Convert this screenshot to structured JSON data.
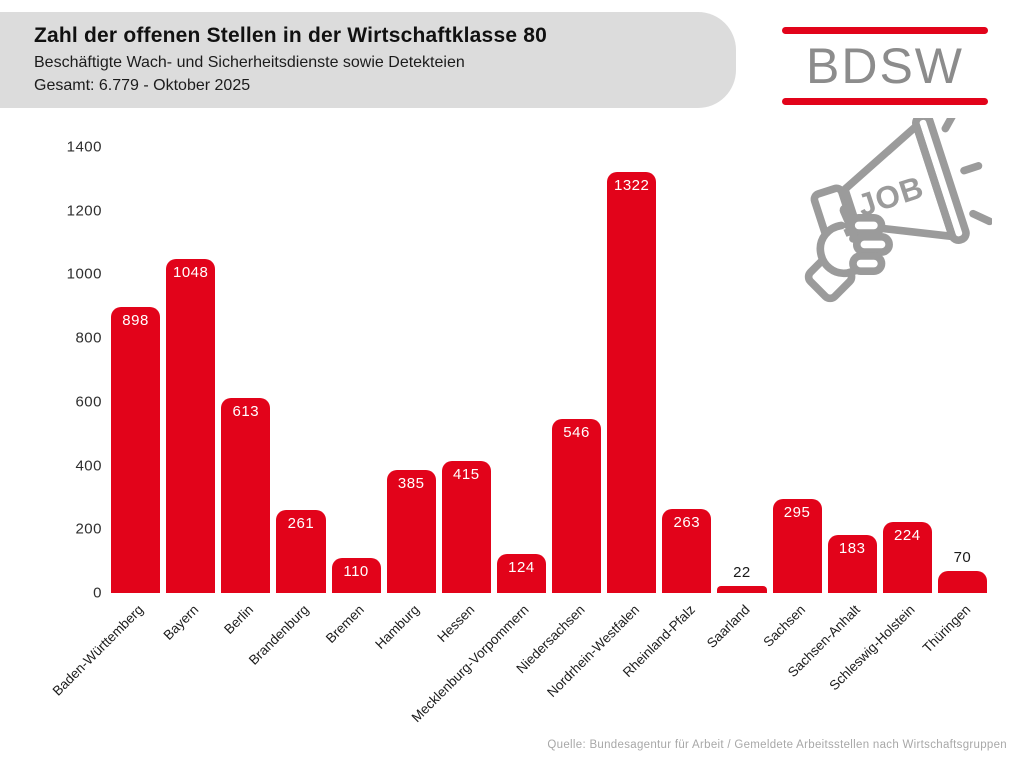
{
  "header": {
    "title": "Zahl der offenen Stellen in der Wirtschaftklasse 80",
    "subtitle": "Beschäftigte Wach- und Sicherheitsdienste sowie Detekteien",
    "total_line": "Gesamt: 6.779 - Oktober 2025"
  },
  "logo": {
    "text": "BDSW",
    "accent_color": "#e2031a",
    "text_color": "#8c8c8c"
  },
  "job_icon": {
    "label": "JOB",
    "color": "#9b9b9b"
  },
  "source": "Quelle: Bundesagentur für Arbeit / Gemeldete Arbeitsstellen nach Wirtschaftsgruppen",
  "chart_data": {
    "type": "bar",
    "title": "Zahl der offenen Stellen in der Wirtschaftklasse 80",
    "categories": [
      "Baden-Württemberg",
      "Bayern",
      "Berlin",
      "Brandenburg",
      "Bremen",
      "Hamburg",
      "Hessen",
      "Mecklenburg-Vorpommern",
      "Niedersachsen",
      "Nordrhein-Westfalen",
      "Rheinland-Pfalz",
      "Saarland",
      "Sachsen",
      "Sachsen-Anhalt",
      "Schleswig-Holstein",
      "Thüringen"
    ],
    "values": [
      898,
      1048,
      613,
      261,
      110,
      385,
      415,
      124,
      546,
      1322,
      263,
      22,
      295,
      183,
      224,
      70
    ],
    "total": 6779,
    "xlabel": "",
    "ylabel": "",
    "ylim": [
      0,
      1400
    ],
    "y_ticks": [
      0,
      200,
      400,
      600,
      800,
      1000,
      1200,
      1400
    ],
    "bar_color": "#e2031a",
    "value_labels": true,
    "grid": false,
    "legend": false
  }
}
